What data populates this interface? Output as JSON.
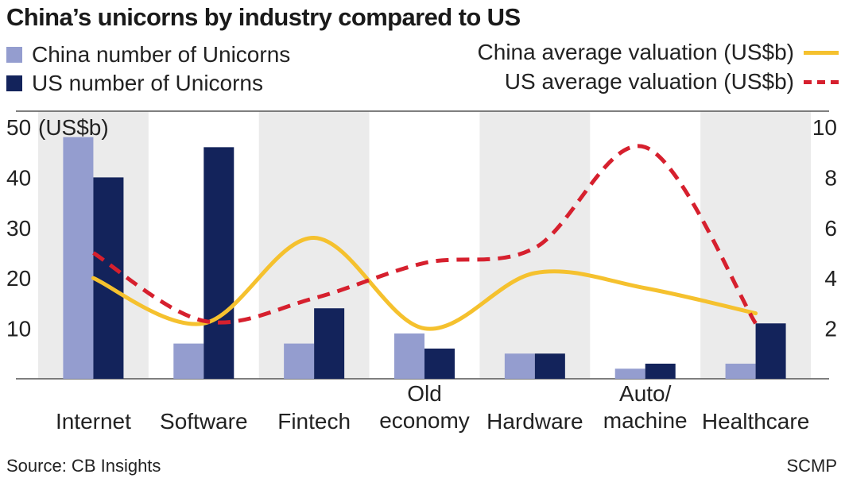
{
  "title": "China’s unicorns by industry compared to US",
  "legend": {
    "china_count": "China number of Unicorns",
    "us_count": "US number of Unicorns",
    "china_valuation": "China average valuation (US$b)",
    "us_valuation": "US average valuation (US$b)"
  },
  "source": "Source: CB Insights",
  "credit": "SCMP",
  "colors": {
    "china_bar": "#949dcf",
    "us_bar": "#13235b",
    "china_line": "#f5c12e",
    "us_line": "#d6202e",
    "band": "#ebebeb"
  },
  "chart_data": {
    "type": "bar",
    "categories": [
      [
        "Internet"
      ],
      [
        "Software"
      ],
      [
        "Fintech"
      ],
      [
        "Old",
        "economy"
      ],
      [
        "Hardware"
      ],
      [
        "Auto/",
        "machine"
      ],
      [
        "Healthcare"
      ]
    ],
    "left_axis": {
      "unit_label": "(US$b)",
      "ticks": [
        10,
        20,
        30,
        40,
        50
      ],
      "range": [
        0,
        50
      ]
    },
    "right_axis": {
      "ticks": [
        2,
        4,
        6,
        8,
        10
      ],
      "range": [
        0,
        10
      ]
    },
    "series": [
      {
        "name": "China number of Unicorns",
        "kind": "bar",
        "axis": "left",
        "values": [
          48,
          7,
          7,
          9,
          5,
          2,
          3
        ]
      },
      {
        "name": "US number of Unicorns",
        "kind": "bar",
        "axis": "left",
        "values": [
          40,
          46,
          14,
          6,
          5,
          3,
          11
        ]
      },
      {
        "name": "China average valuation (US$b)",
        "kind": "line",
        "axis": "right",
        "values": [
          4.0,
          2.2,
          5.6,
          2.0,
          4.2,
          3.6,
          2.6
        ]
      },
      {
        "name": "US average valuation (US$b)",
        "kind": "line",
        "axis": "right",
        "values": [
          5.0,
          2.3,
          3.2,
          4.6,
          5.2,
          9.2,
          2.2
        ]
      }
    ]
  }
}
